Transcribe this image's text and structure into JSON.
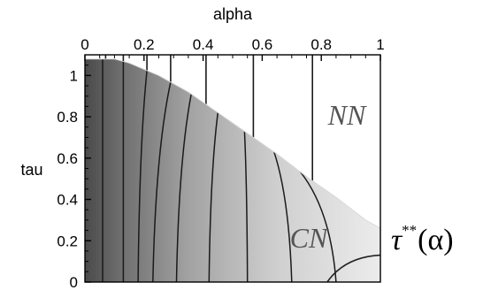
{
  "chart_data": {
    "type": "contour",
    "xlabel": "alpha",
    "ylabel": "tau",
    "xlim": [
      0,
      1
    ],
    "ylim": [
      0,
      1.1
    ],
    "x_ticks": [
      0,
      0.2,
      0.4,
      0.6,
      0.8,
      1
    ],
    "x_tick_labels": [
      "0",
      "0.2",
      "0.4",
      "0.6",
      "0.8",
      "1"
    ],
    "y_ticks": [
      0,
      0.2,
      0.4,
      0.6,
      0.8,
      1
    ],
    "y_tick_labels": [
      "0",
      "0.2",
      "0.4",
      "0.6",
      "0.8",
      "1"
    ],
    "x_axis_position": "top",
    "grid": false,
    "boundary_curve": {
      "label_symbol": "τ",
      "label_superscript": "**",
      "label_argument": "(α)",
      "points": [
        {
          "x": 0.0,
          "y": 1.08
        },
        {
          "x": 0.1,
          "y": 1.08
        },
        {
          "x": 0.15,
          "y": 1.06
        },
        {
          "x": 0.25,
          "y": 1.0
        },
        {
          "x": 0.35,
          "y": 0.92
        },
        {
          "x": 0.45,
          "y": 0.82
        },
        {
          "x": 0.55,
          "y": 0.72
        },
        {
          "x": 0.65,
          "y": 0.62
        },
        {
          "x": 0.75,
          "y": 0.51
        },
        {
          "x": 0.85,
          "y": 0.41
        },
        {
          "x": 0.95,
          "y": 0.3
        },
        {
          "x": 1.0,
          "y": 0.26
        }
      ]
    },
    "region_labels": [
      {
        "text": "NN",
        "x": 0.88,
        "y": 0.78
      },
      {
        "text": "CN",
        "x": 0.76,
        "y": 0.16
      }
    ],
    "contours": [
      {
        "top_x": 0.06,
        "bottom_x": 0.06,
        "bend": 0.0
      },
      {
        "top_x": 0.13,
        "bottom_x": 0.13,
        "bend": 0.0
      },
      {
        "top_x": 0.21,
        "bottom_x": 0.18,
        "bend": 0.0
      },
      {
        "top_x": 0.29,
        "bottom_x": 0.23,
        "bend": 0.0
      },
      {
        "top_x": 0.36,
        "bottom_x": 0.31,
        "bend": 0.0
      },
      {
        "top_x": 0.45,
        "bottom_x": 0.42,
        "bend": 0.0
      },
      {
        "top_x": 0.54,
        "bottom_x": 0.55,
        "bend": 0.0
      },
      {
        "top_x": 0.64,
        "bottom_x": 0.7,
        "bend": 0.0
      },
      {
        "top_x": 0.73,
        "bottom_x": 0.85,
        "bend": 0.0
      }
    ],
    "vertical_lines": [
      0.07,
      0.13,
      0.21,
      0.29,
      0.41,
      0.57,
      0.77
    ],
    "bottom_arc": {
      "start_x": 0.82,
      "end_x": 1.0,
      "end_y": 0.13
    }
  }
}
